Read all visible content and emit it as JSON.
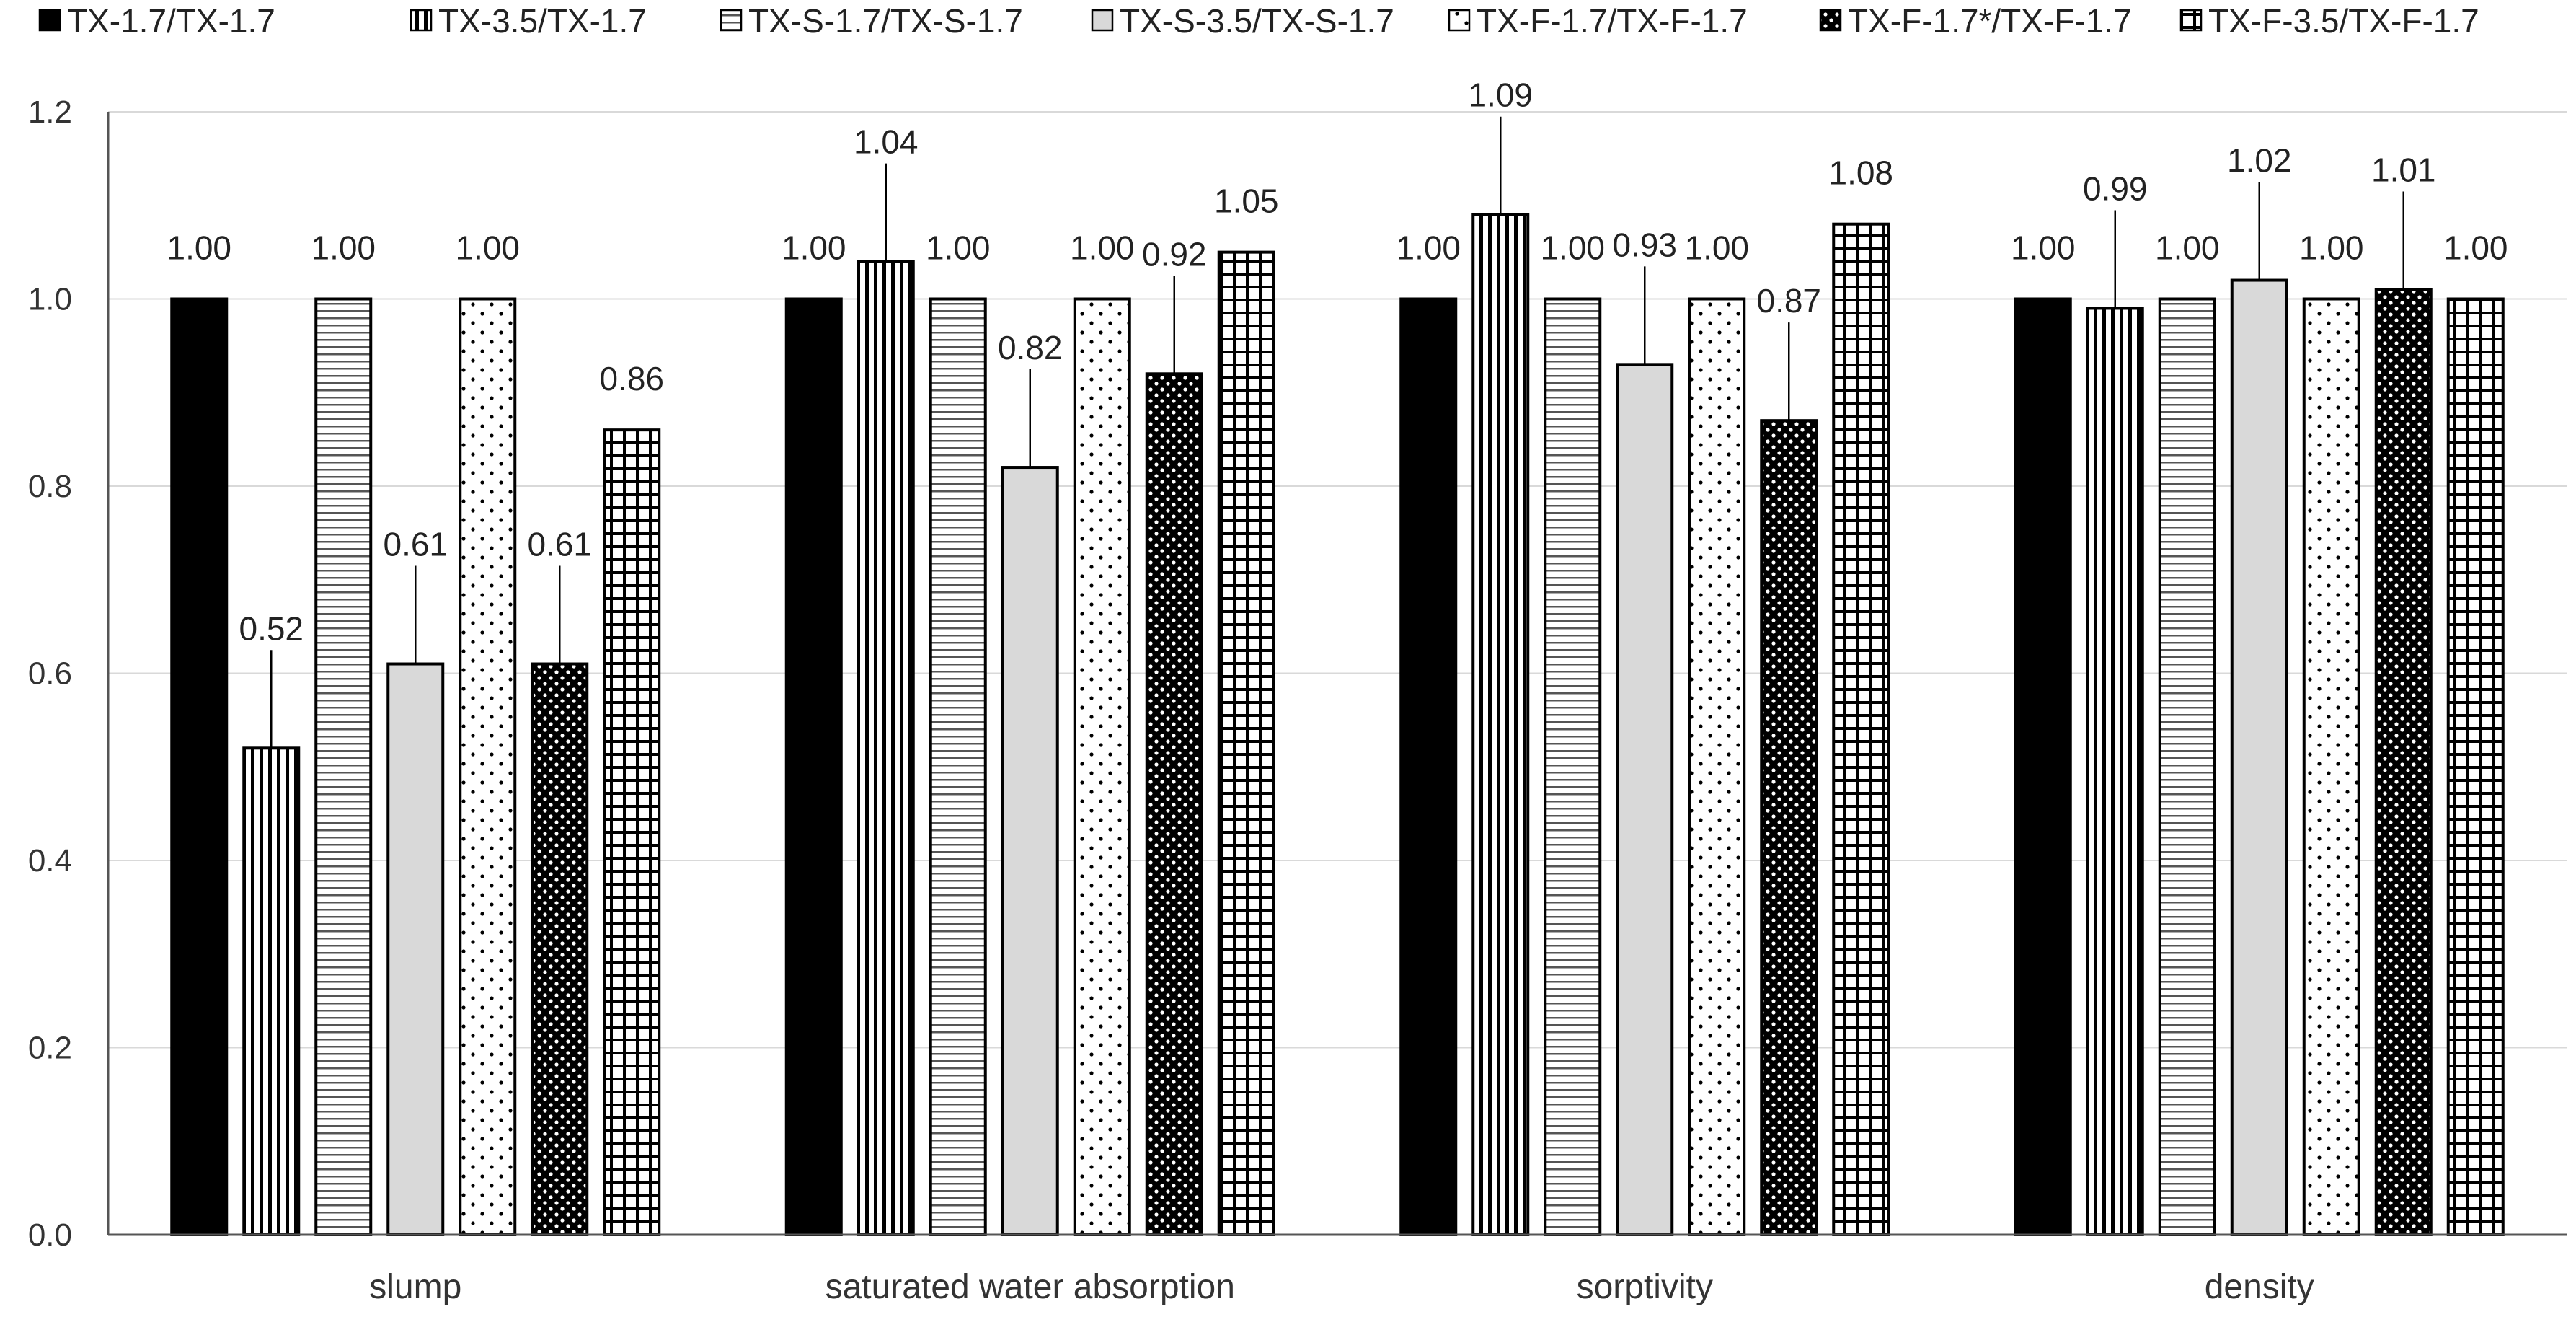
{
  "chart_data": {
    "type": "bar",
    "categories": [
      "slump",
      "saturated water absorption",
      "sorptivity",
      "density"
    ],
    "ylim": [
      0,
      1.2
    ],
    "y_ticks": [
      "0.0",
      "0.2",
      "0.4",
      "0.6",
      "0.8",
      "1.0",
      "1.2"
    ],
    "grid": true,
    "legend_position": "top",
    "series": [
      {
        "name": "TX-1.7/TX-1.7",
        "values": [
          1.0,
          1.0,
          1.0,
          1.0
        ],
        "labels": [
          "1.00",
          "1.00",
          "1.00",
          "1.00"
        ],
        "pattern": "solid-black"
      },
      {
        "name": "TX-3.5/TX-1.7",
        "values": [
          0.52,
          1.04,
          1.09,
          0.99
        ],
        "labels": [
          "0.52",
          "1.04",
          "1.09",
          "0.99"
        ],
        "pattern": "vertical-lines"
      },
      {
        "name": "TX-S-1.7/TX-S-1.7",
        "values": [
          1.0,
          1.0,
          1.0,
          1.0
        ],
        "labels": [
          "1.00",
          "1.00",
          "1.00",
          "1.00"
        ],
        "pattern": "horizontal-lines"
      },
      {
        "name": "TX-S-3.5/TX-S-1.7",
        "values": [
          0.61,
          0.82,
          0.93,
          1.02
        ],
        "labels": [
          "0.61",
          "0.82",
          "0.93",
          "1.02"
        ],
        "pattern": "solid-gray"
      },
      {
        "name": "TX-F-1.7/TX-F-1.7",
        "values": [
          1.0,
          1.0,
          1.0,
          1.0
        ],
        "labels": [
          "1.00",
          "1.00",
          "1.00",
          "1.00"
        ],
        "pattern": "dots"
      },
      {
        "name": "TX-F-1.7*/TX-F-1.7",
        "values": [
          0.61,
          0.92,
          0.87,
          1.01
        ],
        "labels": [
          "0.61",
          "0.92",
          "0.87",
          "1.01"
        ],
        "pattern": "checker"
      },
      {
        "name": "TX-F-3.5/TX-F-1.7",
        "values": [
          0.86,
          1.05,
          1.08,
          1.0
        ],
        "labels": [
          "0.86",
          "1.05",
          "1.08",
          "1.00"
        ],
        "pattern": "grid"
      }
    ],
    "colors": {
      "black": "#000000",
      "gray": "#d9d9d9",
      "white": "#ffffff",
      "gridline": "#d9d9d9"
    }
  }
}
